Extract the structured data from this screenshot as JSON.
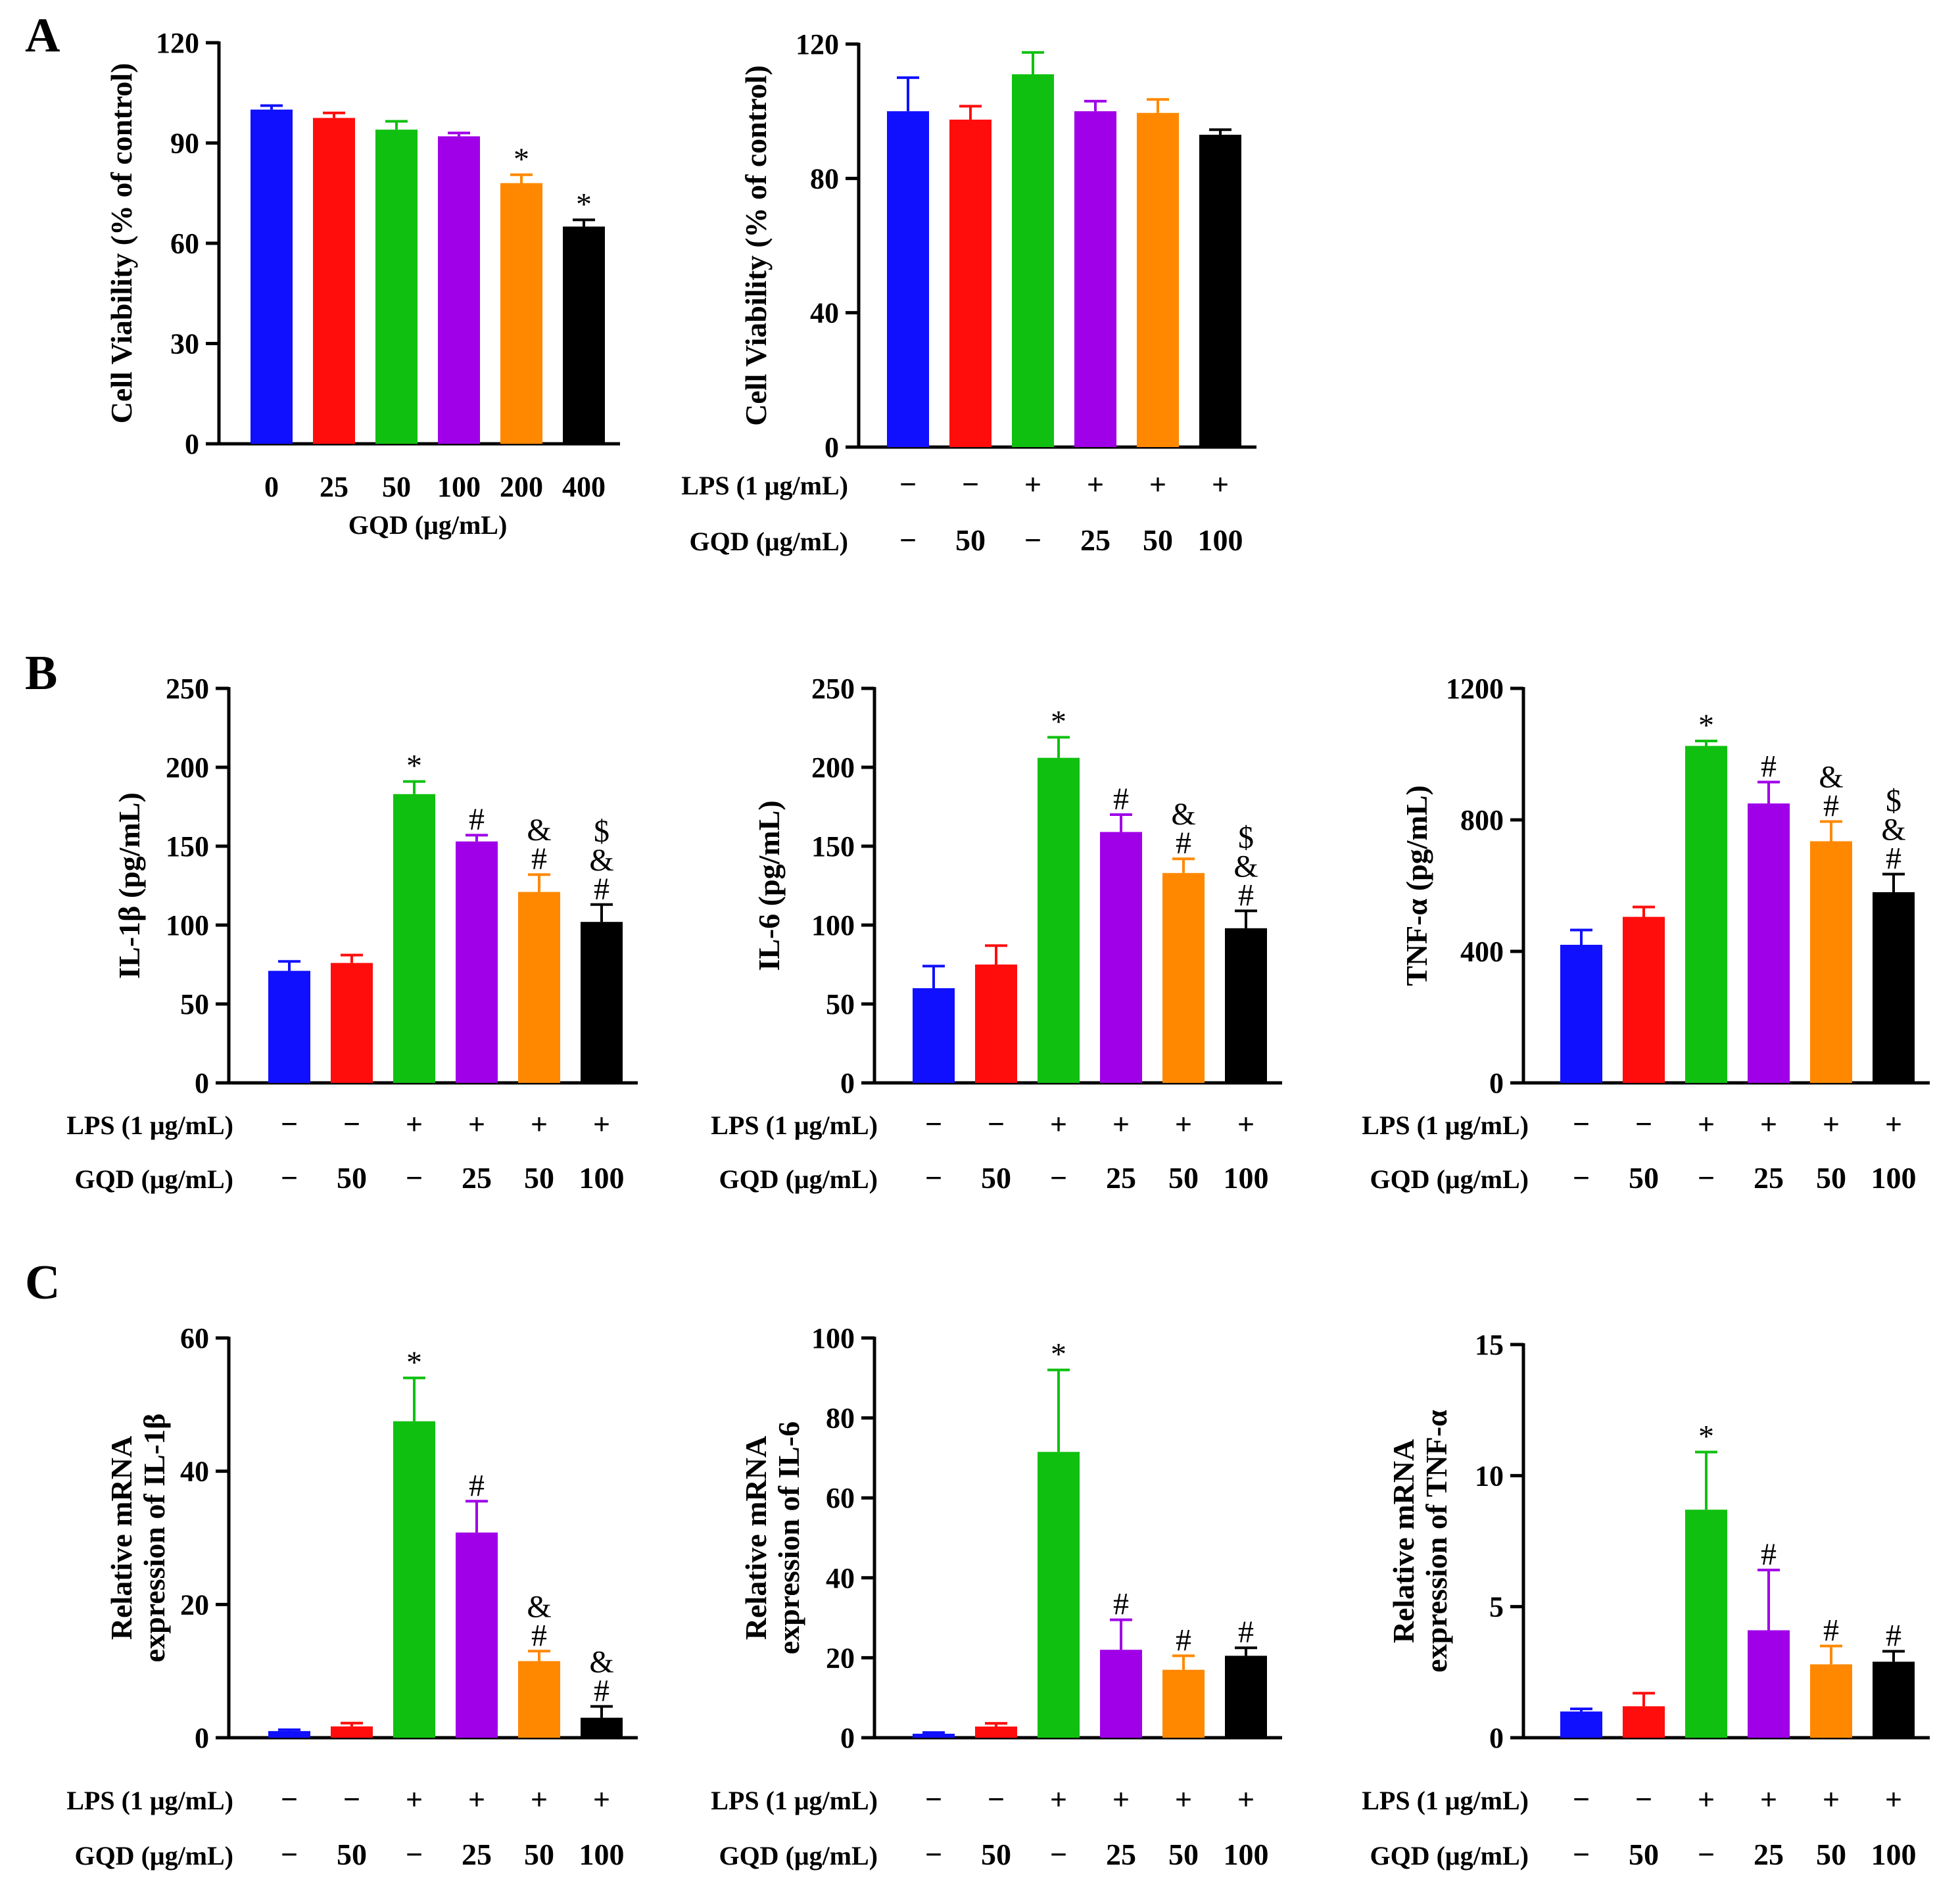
{
  "panels": [
    {
      "letter": "A"
    },
    {
      "letter": "B"
    },
    {
      "letter": "C"
    }
  ],
  "chart_data": [
    {
      "id": "A1",
      "panel": "A",
      "type": "bar",
      "ylabel": "Cell Viability (% of control)",
      "ylim": [
        0,
        120
      ],
      "yticks": [
        0,
        30,
        60,
        90,
        120
      ],
      "xlabel": "GQD (μg/mL)",
      "categories": [
        "0",
        "25",
        "50",
        "100",
        "200",
        "400"
      ],
      "colors": [
        "#1010ff",
        "#ff0d0d",
        "#10c010",
        "#a000e8",
        "#ff8800",
        "#000000"
      ],
      "values": [
        100,
        97.5,
        94,
        92,
        78,
        65
      ],
      "errors": [
        1.2,
        1.5,
        2.5,
        1.0,
        2.5,
        2.0
      ],
      "annotations": [
        [],
        [],
        [],
        [],
        [
          "*"
        ],
        [
          "*"
        ]
      ]
    },
    {
      "id": "A2",
      "panel": "A",
      "type": "bar",
      "ylabel": "Cell Viability (% of control)",
      "ylim": [
        0,
        120
      ],
      "yticks": [
        0,
        40,
        80,
        120
      ],
      "conditions": [
        {
          "label": "LPS (1 μg/mL)",
          "values": [
            "−",
            "−",
            "+",
            "+",
            "+",
            "+"
          ]
        },
        {
          "label": "GQD (μg/mL)",
          "values": [
            "−",
            "50",
            "−",
            "25",
            "50",
            "100"
          ]
        }
      ],
      "colors": [
        "#1010ff",
        "#ff0d0d",
        "#10c010",
        "#a000e8",
        "#ff8800",
        "#000000"
      ],
      "values": [
        100,
        97.5,
        111,
        100,
        99.5,
        93
      ],
      "errors": [
        10,
        4,
        6.5,
        3,
        4,
        1.5
      ],
      "annotations": [
        [],
        [],
        [],
        [],
        [],
        []
      ]
    },
    {
      "id": "B1",
      "panel": "B",
      "type": "bar",
      "ylabel": "IL-1β (pg/mL)",
      "ylim": [
        0,
        250
      ],
      "yticks": [
        0,
        50,
        100,
        150,
        200,
        250
      ],
      "conditions": [
        {
          "label": "LPS (1 μg/mL)",
          "values": [
            "−",
            "−",
            "+",
            "+",
            "+",
            "+"
          ]
        },
        {
          "label": "GQD (μg/mL)",
          "values": [
            "−",
            "50",
            "−",
            "25",
            "50",
            "100"
          ]
        }
      ],
      "colors": [
        "#1010ff",
        "#ff0d0d",
        "#10c010",
        "#a000e8",
        "#ff8800",
        "#000000"
      ],
      "values": [
        71,
        76,
        183,
        153,
        121,
        102
      ],
      "errors": [
        6,
        5,
        8,
        4,
        11,
        11
      ],
      "annotations": [
        [],
        [],
        [
          "*"
        ],
        [
          "#"
        ],
        [
          "#",
          "&"
        ],
        [
          "#",
          "&",
          "$"
        ]
      ]
    },
    {
      "id": "B2",
      "panel": "B",
      "type": "bar",
      "ylabel": "IL-6 (pg/mL)",
      "ylim": [
        0,
        250
      ],
      "yticks": [
        0,
        50,
        100,
        150,
        200,
        250
      ],
      "conditions": [
        {
          "label": "LPS (1 μg/mL)",
          "values": [
            "−",
            "−",
            "+",
            "+",
            "+",
            "+"
          ]
        },
        {
          "label": "GQD (μg/mL)",
          "values": [
            "−",
            "50",
            "−",
            "25",
            "50",
            "100"
          ]
        }
      ],
      "colors": [
        "#1010ff",
        "#ff0d0d",
        "#10c010",
        "#a000e8",
        "#ff8800",
        "#000000"
      ],
      "values": [
        60,
        75,
        206,
        159,
        133,
        98
      ],
      "errors": [
        14,
        12,
        13,
        11,
        9,
        11
      ],
      "annotations": [
        [],
        [],
        [
          "*"
        ],
        [
          "#"
        ],
        [
          "#",
          "&"
        ],
        [
          "#",
          "&",
          "$"
        ]
      ]
    },
    {
      "id": "B3",
      "panel": "B",
      "type": "bar",
      "ylabel": "TNF-α (pg/mL)",
      "ylim": [
        0,
        1200
      ],
      "yticks": [
        0,
        400,
        800,
        1200
      ],
      "conditions": [
        {
          "label": "LPS (1 μg/mL)",
          "values": [
            "−",
            "−",
            "+",
            "+",
            "+",
            "+"
          ]
        },
        {
          "label": "GQD (μg/mL)",
          "values": [
            "−",
            "50",
            "−",
            "25",
            "50",
            "100"
          ]
        }
      ],
      "colors": [
        "#1010ff",
        "#ff0d0d",
        "#10c010",
        "#a000e8",
        "#ff8800",
        "#000000"
      ],
      "values": [
        420,
        505,
        1025,
        850,
        735,
        580
      ],
      "errors": [
        45,
        30,
        15,
        65,
        60,
        55
      ],
      "annotations": [
        [],
        [],
        [
          "*"
        ],
        [
          "#"
        ],
        [
          "#",
          "&"
        ],
        [
          "#",
          "&",
          "$"
        ]
      ]
    },
    {
      "id": "C1",
      "panel": "C",
      "type": "bar",
      "ylabel": "Relative mRNA expression of IL-1β",
      "ylim": [
        0,
        60
      ],
      "yticks": [
        0,
        20,
        40,
        60
      ],
      "conditions": [
        {
          "label": "LPS (1 μg/mL)",
          "values": [
            "−",
            "−",
            "+",
            "+",
            "+",
            "+"
          ]
        },
        {
          "label": "GQD (μg/mL)",
          "values": [
            "−",
            "50",
            "−",
            "25",
            "50",
            "100"
          ]
        }
      ],
      "colors": [
        "#1010ff",
        "#ff0d0d",
        "#10c010",
        "#a000e8",
        "#ff8800",
        "#000000"
      ],
      "values": [
        1,
        1.7,
        47.5,
        30.8,
        11.5,
        3
      ],
      "errors": [
        0.2,
        0.5,
        6.5,
        4.7,
        1.5,
        1.7
      ],
      "annotations": [
        [],
        [],
        [
          "*"
        ],
        [
          "#"
        ],
        [
          "#",
          "&"
        ],
        [
          "#",
          "&"
        ]
      ]
    },
    {
      "id": "C2",
      "panel": "C",
      "type": "bar",
      "ylabel": "Relative mRNA expression of IL-6",
      "ylim": [
        0,
        100
      ],
      "yticks": [
        0,
        20,
        40,
        60,
        80,
        100
      ],
      "conditions": [
        {
          "label": "LPS (1 μg/mL)",
          "values": [
            "−",
            "−",
            "+",
            "+",
            "+",
            "+"
          ]
        },
        {
          "label": "GQD (μg/mL)",
          "values": [
            "−",
            "50",
            "−",
            "25",
            "50",
            "100"
          ]
        }
      ],
      "colors": [
        "#1010ff",
        "#ff0d0d",
        "#10c010",
        "#a000e8",
        "#ff8800",
        "#000000"
      ],
      "values": [
        1,
        2.8,
        71.5,
        22,
        17,
        20.5
      ],
      "errors": [
        0.3,
        0.8,
        20.5,
        7.5,
        3.5,
        2
      ],
      "annotations": [
        [],
        [],
        [
          "*"
        ],
        [
          "#"
        ],
        [
          "#"
        ],
        [
          "#"
        ]
      ]
    },
    {
      "id": "C3",
      "panel": "C",
      "type": "bar",
      "ylabel": "Relative mRNA expression of TNF-α",
      "ylim": [
        0,
        15
      ],
      "yticks": [
        0,
        5,
        10,
        15
      ],
      "conditions": [
        {
          "label": "LPS (1 μg/mL)",
          "values": [
            "−",
            "−",
            "+",
            "+",
            "+",
            "+"
          ]
        },
        {
          "label": "GQD (μg/mL)",
          "values": [
            "−",
            "50",
            "−",
            "25",
            "50",
            "100"
          ]
        }
      ],
      "colors": [
        "#1010ff",
        "#ff0d0d",
        "#10c010",
        "#a000e8",
        "#ff8800",
        "#000000"
      ],
      "values": [
        1,
        1.2,
        8.7,
        4.1,
        2.8,
        2.9
      ],
      "errors": [
        0.1,
        0.5,
        2.2,
        2.3,
        0.7,
        0.4
      ],
      "annotations": [
        [],
        [],
        [
          "*"
        ],
        [
          "#"
        ],
        [
          "#"
        ],
        [
          "#"
        ]
      ]
    }
  ]
}
